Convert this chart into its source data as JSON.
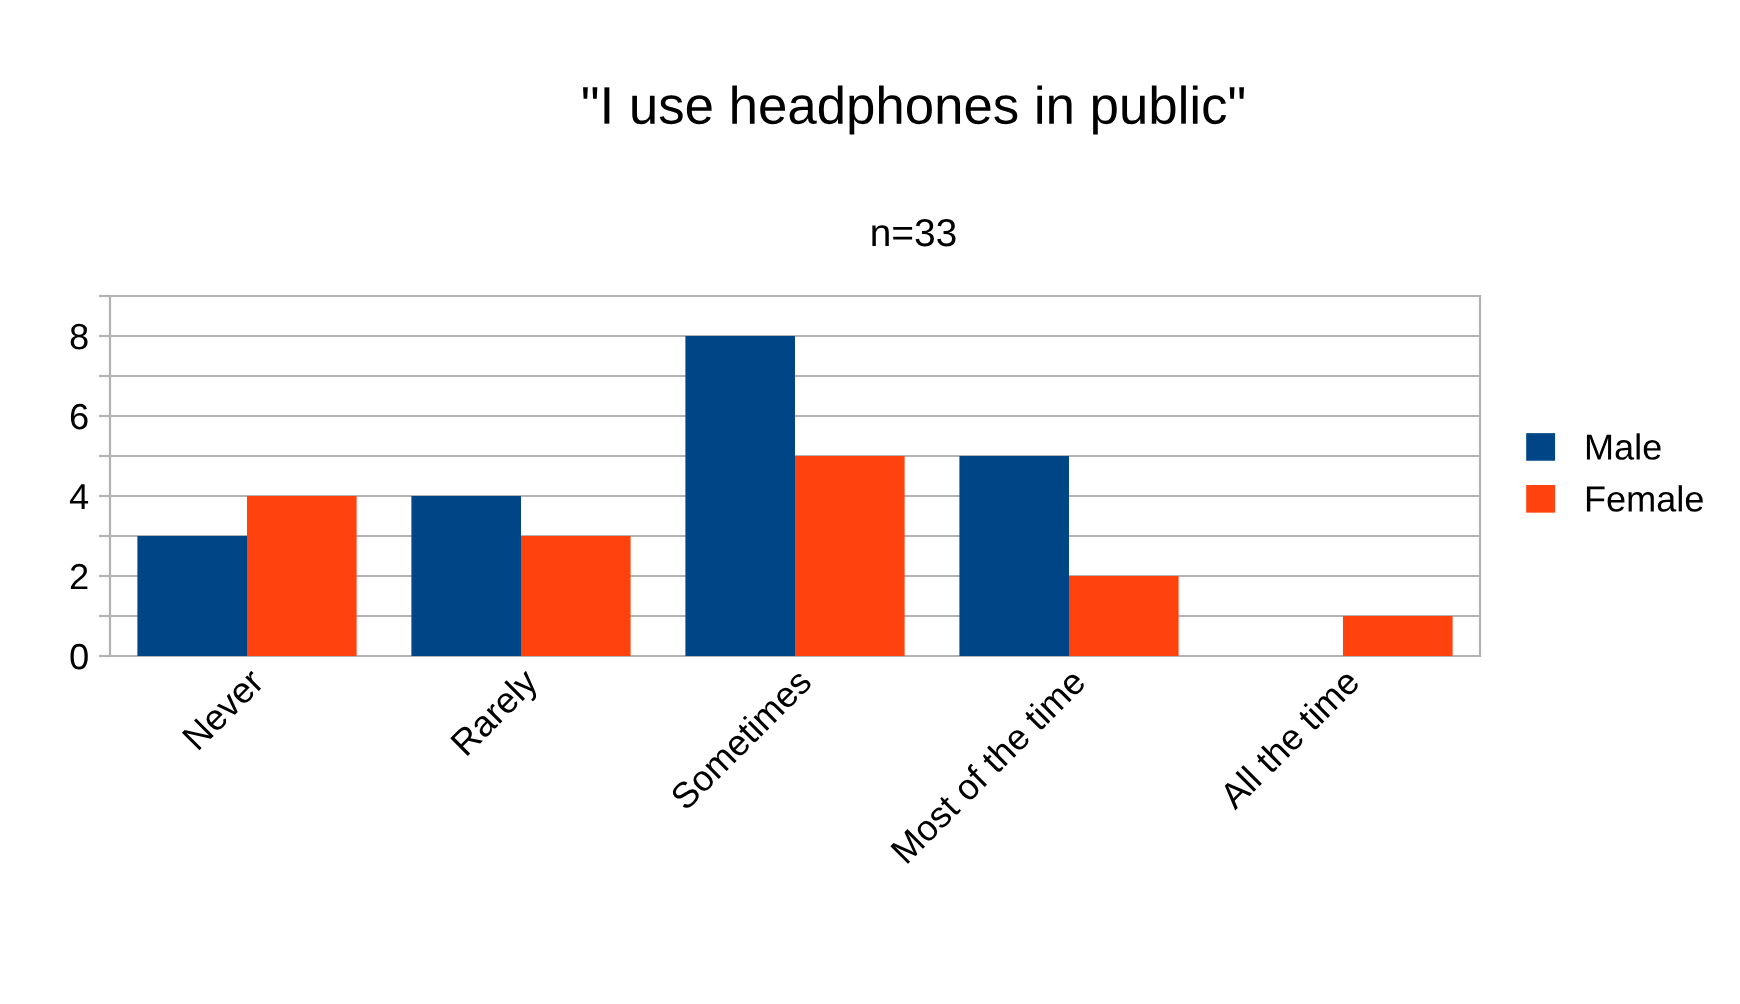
{
  "chart_data": {
    "type": "bar",
    "title": "\"I use headphones in public\"",
    "subtitle": "n=33",
    "categories": [
      "Never",
      "Rarely",
      "Sometimes",
      "Most of the time",
      "All the time"
    ],
    "series": [
      {
        "name": "Male",
        "color": "#004586",
        "values": [
          3,
          4,
          8,
          5,
          0
        ]
      },
      {
        "name": "Female",
        "color": "#ff420e",
        "values": [
          4,
          3,
          5,
          2,
          1
        ]
      }
    ],
    "ylim": [
      0,
      9
    ],
    "yticks": [
      0,
      {
        "value": 1,
        "label": null
      },
      2,
      {
        "value": 3,
        "label": null
      },
      4,
      {
        "value": 5,
        "label": null
      },
      6,
      {
        "value": 7,
        "label": null
      },
      8,
      {
        "value": 9,
        "label": null
      }
    ],
    "grid": "y",
    "legend": "right"
  }
}
